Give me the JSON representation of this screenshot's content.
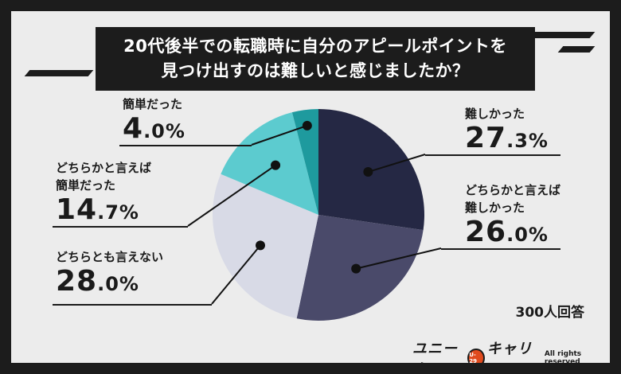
{
  "title_lines": [
    "20代後半での転職時に自分のアピールポイントを",
    "見つけ出すのは難しいと感じましたか？"
  ],
  "respondents": "300人回答",
  "logo": {
    "left": "ユニーク",
    "badge": "U-29",
    "right": "キャリア",
    "rights": "All rights reserved"
  },
  "chart_data": {
    "type": "pie",
    "title": "20代後半での転職時に自分のアピールポイントを見つけ出すのは難しいと感じましたか？",
    "slices": [
      {
        "label": "難しかった",
        "value": 27.3,
        "int": "27",
        "dec": ".3%",
        "color": "#252844"
      },
      {
        "label": "どちらかと言えば難しかった",
        "value": 26.0,
        "int": "26",
        "dec": ".0%",
        "color": "#4a4a6a"
      },
      {
        "label": "どちらとも言えない",
        "value": 28.0,
        "int": "28",
        "dec": ".0%",
        "color": "#d8dae6"
      },
      {
        "label": "どちらかと言えば簡単だった",
        "value": 14.7,
        "int": "14",
        "dec": ".7%",
        "color": "#5ccbcf"
      },
      {
        "label": "簡単だった",
        "value": 4.0,
        "int": "4",
        "dec": ".0%",
        "color": "#1e9a9e"
      }
    ],
    "start_angle_deg": 0,
    "direction": "clockwise",
    "legend": "none"
  }
}
